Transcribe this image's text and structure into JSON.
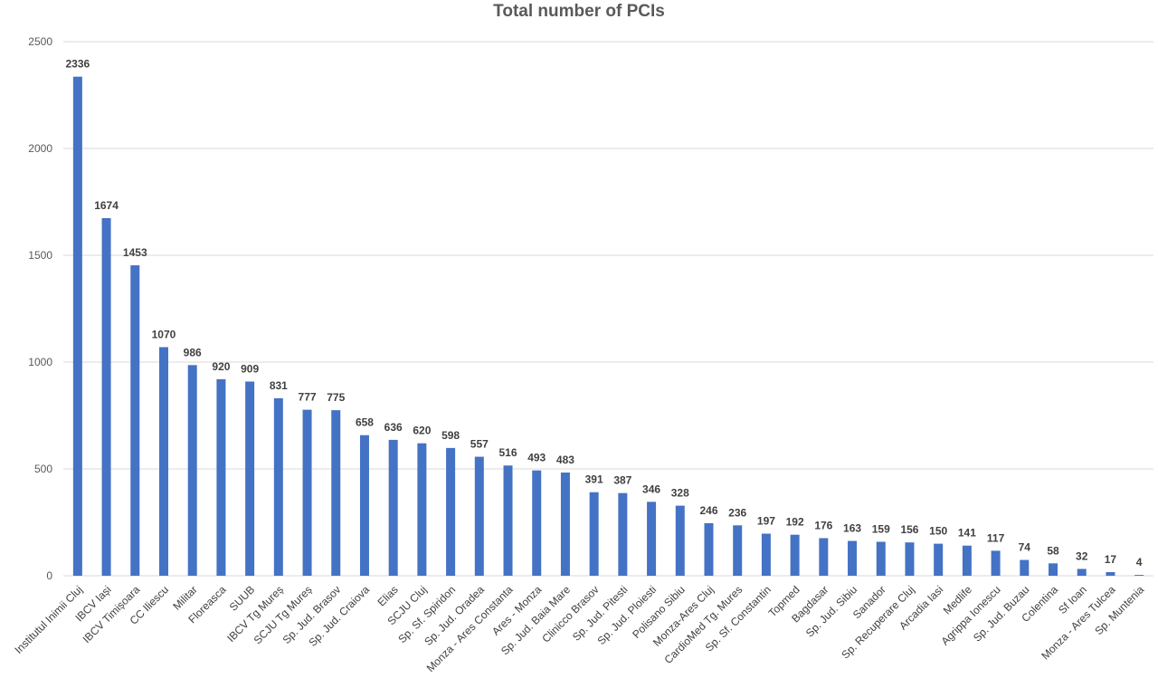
{
  "chart_data": {
    "type": "bar",
    "title": "Total number of PCIs",
    "xlabel": "",
    "ylabel": "",
    "ylim": [
      0,
      2500
    ],
    "yticks": [
      0,
      500,
      1000,
      1500,
      2000,
      2500
    ],
    "grid": true,
    "legend": "none",
    "bar_color": "#4472c4",
    "categories": [
      "Institutul Inimii Cluj",
      "IBCV Iași",
      "IBCV Timișoara",
      "CC Iliescu",
      "Militar",
      "Floreasca",
      "SUUB",
      "IBCV Tg Mureș",
      "SCJU Tg Mureș",
      "Sp. Jud. Brasov",
      "Sp. Jud. Craiova",
      "Elias",
      "SCJU Cluj",
      "Sp. Sf. Spiridon",
      "Sp. Jud. Oradea",
      "Monza - Ares Constanta",
      "Ares - Monza",
      "Sp. Jud. Baia Mare",
      "Clinicco Brasov",
      "Sp. Jud. Pitesti",
      "Sp. Jud. Ploiesti",
      "Polisano Sibiu",
      "Monza-Ares Cluj",
      "CardioMed Tg. Mures",
      "Sp. Sf. Constantin",
      "Topmed",
      "Bagdasar",
      "Sp. Jud. Sibiu",
      "Sanador",
      "Sp. Recuperare Cluj",
      "Arcadia Iasi",
      "Medlife",
      "Agrippa Ionescu",
      "Sp. Jud. Buzau",
      "Colentina",
      "Sf Ioan",
      "Monza - Ares Tulcea",
      "Sp. Muntenia"
    ],
    "values": [
      2336,
      1674,
      1453,
      1070,
      986,
      920,
      909,
      831,
      777,
      775,
      658,
      636,
      620,
      598,
      557,
      516,
      493,
      483,
      391,
      387,
      346,
      328,
      246,
      236,
      197,
      192,
      176,
      163,
      159,
      156,
      150,
      141,
      117,
      74,
      58,
      32,
      17,
      4
    ]
  }
}
